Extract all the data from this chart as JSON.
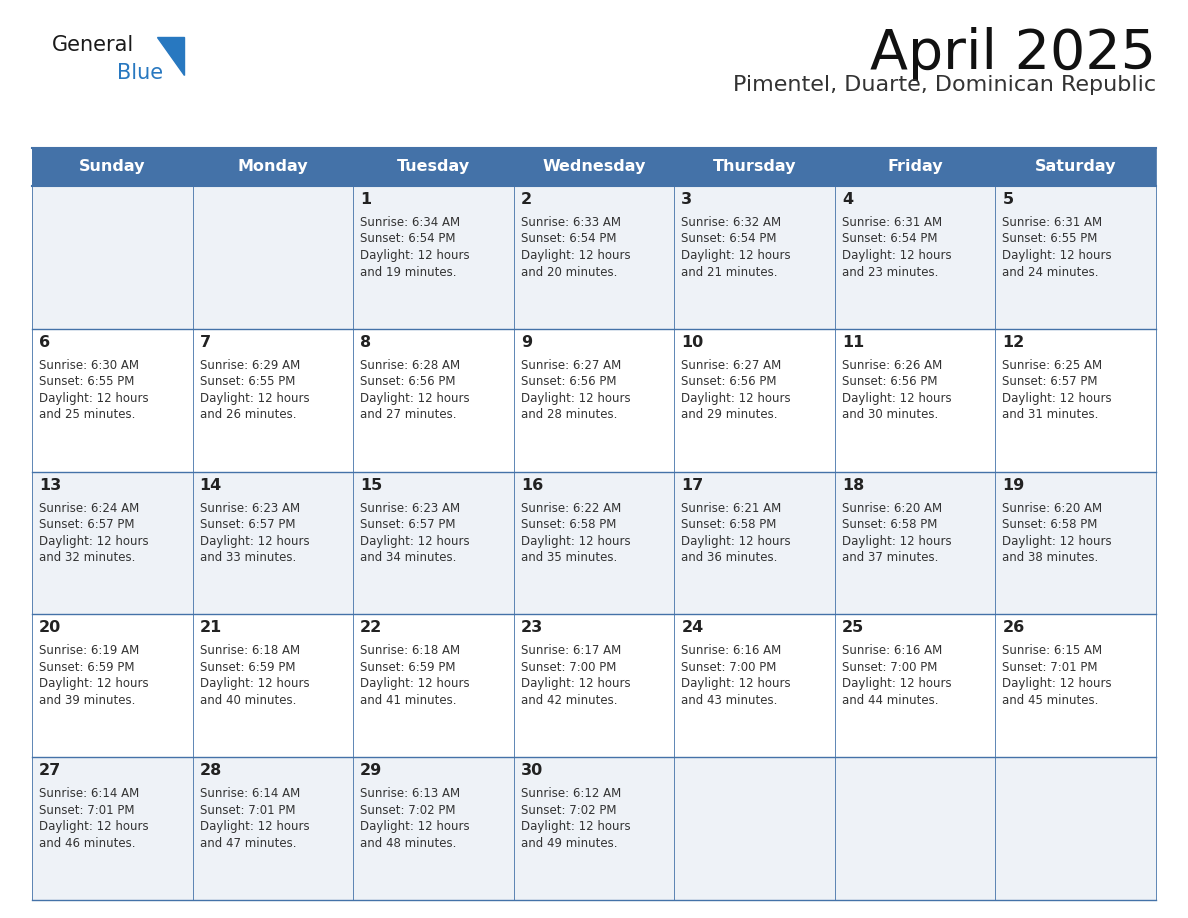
{
  "title": "April 2025",
  "subtitle": "Pimentel, Duarte, Dominican Republic",
  "header_color": "#4472a8",
  "header_text_color": "#ffffff",
  "cell_bg_even": "#eef2f7",
  "cell_bg_odd": "#ffffff",
  "days_of_week": [
    "Sunday",
    "Monday",
    "Tuesday",
    "Wednesday",
    "Thursday",
    "Friday",
    "Saturday"
  ],
  "day_text_color": "#222222",
  "number_color": "#222222",
  "info_color": "#333333",
  "line_color": "#4472a8",
  "bg_color": "#ffffff",
  "logo_text1": "General",
  "logo_text2": "Blue",
  "logo_color1": "#1a1a1a",
  "logo_color2": "#2878c0",
  "logo_triangle_color": "#2878c0",
  "calendar_data": [
    [
      {
        "day": "",
        "sunrise": "",
        "sunset": "",
        "daylight": ""
      },
      {
        "day": "",
        "sunrise": "",
        "sunset": "",
        "daylight": ""
      },
      {
        "day": "1",
        "sunrise": "6:34 AM",
        "sunset": "6:54 PM",
        "daylight": "12 hours and 19 minutes."
      },
      {
        "day": "2",
        "sunrise": "6:33 AM",
        "sunset": "6:54 PM",
        "daylight": "12 hours and 20 minutes."
      },
      {
        "day": "3",
        "sunrise": "6:32 AM",
        "sunset": "6:54 PM",
        "daylight": "12 hours and 21 minutes."
      },
      {
        "day": "4",
        "sunrise": "6:31 AM",
        "sunset": "6:54 PM",
        "daylight": "12 hours and 23 minutes."
      },
      {
        "day": "5",
        "sunrise": "6:31 AM",
        "sunset": "6:55 PM",
        "daylight": "12 hours and 24 minutes."
      }
    ],
    [
      {
        "day": "6",
        "sunrise": "6:30 AM",
        "sunset": "6:55 PM",
        "daylight": "12 hours and 25 minutes."
      },
      {
        "day": "7",
        "sunrise": "6:29 AM",
        "sunset": "6:55 PM",
        "daylight": "12 hours and 26 minutes."
      },
      {
        "day": "8",
        "sunrise": "6:28 AM",
        "sunset": "6:56 PM",
        "daylight": "12 hours and 27 minutes."
      },
      {
        "day": "9",
        "sunrise": "6:27 AM",
        "sunset": "6:56 PM",
        "daylight": "12 hours and 28 minutes."
      },
      {
        "day": "10",
        "sunrise": "6:27 AM",
        "sunset": "6:56 PM",
        "daylight": "12 hours and 29 minutes."
      },
      {
        "day": "11",
        "sunrise": "6:26 AM",
        "sunset": "6:56 PM",
        "daylight": "12 hours and 30 minutes."
      },
      {
        "day": "12",
        "sunrise": "6:25 AM",
        "sunset": "6:57 PM",
        "daylight": "12 hours and 31 minutes."
      }
    ],
    [
      {
        "day": "13",
        "sunrise": "6:24 AM",
        "sunset": "6:57 PM",
        "daylight": "12 hours and 32 minutes."
      },
      {
        "day": "14",
        "sunrise": "6:23 AM",
        "sunset": "6:57 PM",
        "daylight": "12 hours and 33 minutes."
      },
      {
        "day": "15",
        "sunrise": "6:23 AM",
        "sunset": "6:57 PM",
        "daylight": "12 hours and 34 minutes."
      },
      {
        "day": "16",
        "sunrise": "6:22 AM",
        "sunset": "6:58 PM",
        "daylight": "12 hours and 35 minutes."
      },
      {
        "day": "17",
        "sunrise": "6:21 AM",
        "sunset": "6:58 PM",
        "daylight": "12 hours and 36 minutes."
      },
      {
        "day": "18",
        "sunrise": "6:20 AM",
        "sunset": "6:58 PM",
        "daylight": "12 hours and 37 minutes."
      },
      {
        "day": "19",
        "sunrise": "6:20 AM",
        "sunset": "6:58 PM",
        "daylight": "12 hours and 38 minutes."
      }
    ],
    [
      {
        "day": "20",
        "sunrise": "6:19 AM",
        "sunset": "6:59 PM",
        "daylight": "12 hours and 39 minutes."
      },
      {
        "day": "21",
        "sunrise": "6:18 AM",
        "sunset": "6:59 PM",
        "daylight": "12 hours and 40 minutes."
      },
      {
        "day": "22",
        "sunrise": "6:18 AM",
        "sunset": "6:59 PM",
        "daylight": "12 hours and 41 minutes."
      },
      {
        "day": "23",
        "sunrise": "6:17 AM",
        "sunset": "7:00 PM",
        "daylight": "12 hours and 42 minutes."
      },
      {
        "day": "24",
        "sunrise": "6:16 AM",
        "sunset": "7:00 PM",
        "daylight": "12 hours and 43 minutes."
      },
      {
        "day": "25",
        "sunrise": "6:16 AM",
        "sunset": "7:00 PM",
        "daylight": "12 hours and 44 minutes."
      },
      {
        "day": "26",
        "sunrise": "6:15 AM",
        "sunset": "7:01 PM",
        "daylight": "12 hours and 45 minutes."
      }
    ],
    [
      {
        "day": "27",
        "sunrise": "6:14 AM",
        "sunset": "7:01 PM",
        "daylight": "12 hours and 46 minutes."
      },
      {
        "day": "28",
        "sunrise": "6:14 AM",
        "sunset": "7:01 PM",
        "daylight": "12 hours and 47 minutes."
      },
      {
        "day": "29",
        "sunrise": "6:13 AM",
        "sunset": "7:02 PM",
        "daylight": "12 hours and 48 minutes."
      },
      {
        "day": "30",
        "sunrise": "6:12 AM",
        "sunset": "7:02 PM",
        "daylight": "12 hours and 49 minutes."
      },
      {
        "day": "",
        "sunrise": "",
        "sunset": "",
        "daylight": ""
      },
      {
        "day": "",
        "sunrise": "",
        "sunset": "",
        "daylight": ""
      },
      {
        "day": "",
        "sunrise": "",
        "sunset": "",
        "daylight": ""
      }
    ]
  ]
}
